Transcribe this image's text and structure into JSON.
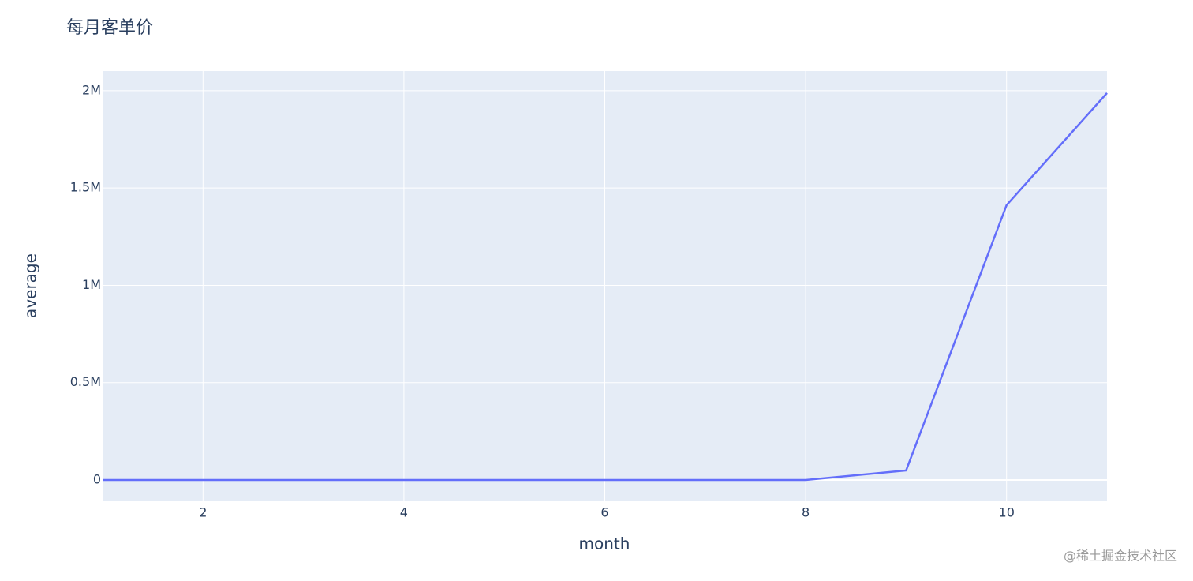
{
  "chart_data": {
    "type": "line",
    "title": "每月客单价",
    "x_label": "month",
    "y_label": "average",
    "x": [
      1,
      2,
      3,
      4,
      5,
      6,
      7,
      8,
      9,
      10,
      11
    ],
    "series": [
      {
        "name": "average",
        "color": "#636efa",
        "values": [
          0,
          0,
          0,
          0,
          0,
          0,
          0,
          0,
          48700,
          1412000,
          1988000
        ]
      }
    ],
    "xlim": [
      1,
      11
    ],
    "xticks": [
      2,
      4,
      6,
      8,
      10
    ],
    "ylim": [
      -109500,
      2101000
    ],
    "yticks": [
      0,
      {
        "value": 500000,
        "label": "0.5M"
      },
      {
        "value": 1000000,
        "label": "1M"
      },
      {
        "value": 1500000,
        "label": "1.5M"
      },
      {
        "value": 2000000,
        "label": "2M"
      }
    ],
    "grid": true,
    "background": "#e5ecf6",
    "watermark": "@稀土掘金技术社区"
  }
}
